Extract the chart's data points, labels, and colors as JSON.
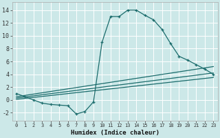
{
  "title": "",
  "xlabel": "Humidex (Indice chaleur)",
  "ylabel": "",
  "bg_color": "#cce8e8",
  "grid_color": "#ffffff",
  "line_color": "#1a6b6b",
  "xlim": [
    -0.5,
    23.5
  ],
  "ylim": [
    -3.2,
    15.2
  ],
  "xticks": [
    0,
    1,
    2,
    3,
    4,
    5,
    6,
    7,
    8,
    9,
    10,
    11,
    12,
    13,
    14,
    15,
    16,
    17,
    18,
    19,
    20,
    21,
    22,
    23
  ],
  "yticks": [
    -2,
    0,
    2,
    4,
    6,
    8,
    10,
    12,
    14
  ],
  "series1_x": [
    0,
    1,
    2,
    3,
    4,
    5,
    6,
    7,
    8,
    9,
    10,
    11,
    12,
    13,
    14,
    15,
    16,
    17,
    18,
    19,
    20,
    21,
    22,
    23
  ],
  "series1_y": [
    1.0,
    0.5,
    0.0,
    -0.5,
    -0.7,
    -0.8,
    -0.9,
    -2.2,
    -1.8,
    -0.3,
    9.0,
    13.0,
    13.0,
    14.0,
    14.0,
    13.2,
    12.5,
    11.0,
    8.8,
    6.8,
    6.2,
    5.5,
    4.8,
    4.0
  ],
  "series2_x": [
    0,
    23
  ],
  "series2_y": [
    0.5,
    5.2
  ],
  "series3_x": [
    0,
    23
  ],
  "series3_y": [
    0.3,
    4.2
  ],
  "series4_x": [
    0,
    23
  ],
  "series4_y": [
    0.1,
    3.5
  ]
}
